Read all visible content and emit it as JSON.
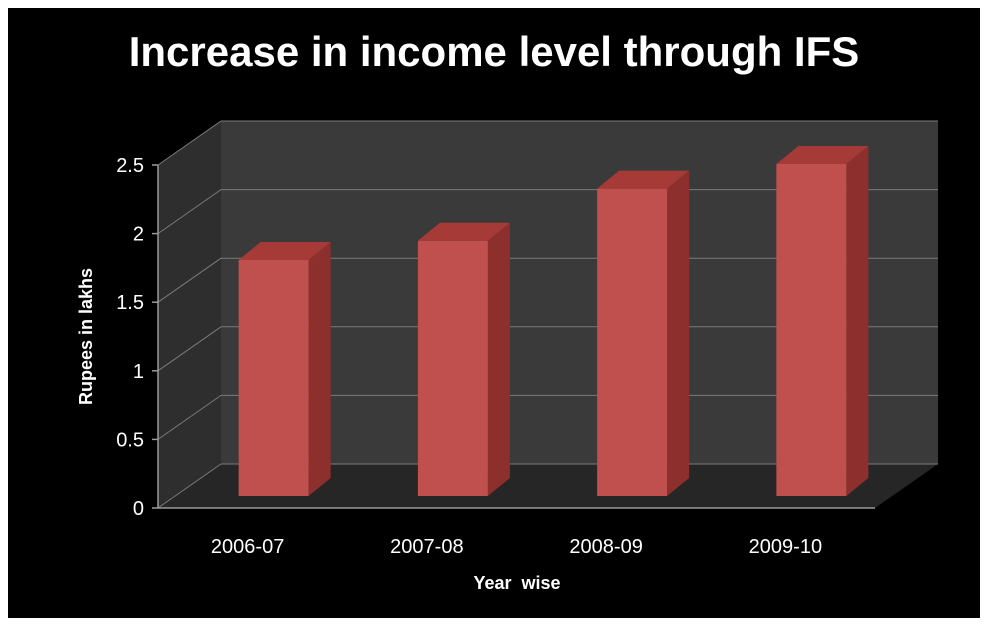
{
  "chart_data": {
    "type": "bar",
    "title": "Increase in income level through IFS",
    "xlabel": "Year  wise",
    "ylabel": "Rupees in lakhs",
    "categories": [
      "2006-07",
      "2007-08",
      "2008-09",
      "2009-10"
    ],
    "values": [
      1.72,
      1.86,
      2.24,
      2.42
    ],
    "ylim": [
      0,
      2.5
    ],
    "yticks": [
      "0",
      "0.5",
      "1",
      "1.5",
      "2",
      "2.5"
    ],
    "grid": true,
    "legend": "none",
    "colors": {
      "background": "#000000",
      "bar_front": "#c0504d",
      "bar_side": "#8c2f2d",
      "bar_top": "#a53a37",
      "wall": "#3a3a3a",
      "floor": "#262626",
      "gridline": "#7a7a7a",
      "text": "#ffffff"
    }
  }
}
